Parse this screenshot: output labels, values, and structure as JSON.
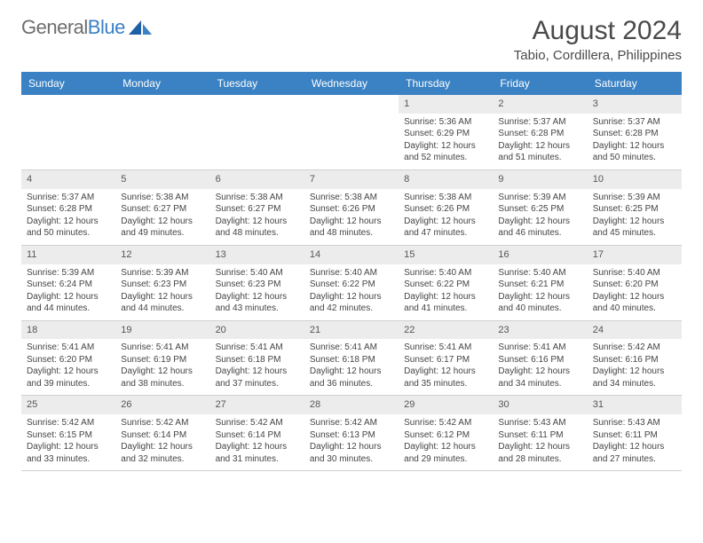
{
  "logo": {
    "word1": "General",
    "word2": "Blue"
  },
  "title": "August 2024",
  "location": "Tabio, Cordillera, Philippines",
  "colors": {
    "header_bg": "#3b82c4",
    "header_text": "#ffffff",
    "daynum_bg": "#ececec",
    "text": "#444444",
    "title_text": "#4a4a4a",
    "logo_gray": "#6e6e6e",
    "logo_blue": "#3b7fc4"
  },
  "day_names": [
    "Sunday",
    "Monday",
    "Tuesday",
    "Wednesday",
    "Thursday",
    "Friday",
    "Saturday"
  ],
  "weeks": [
    [
      {
        "n": "",
        "sr": "",
        "ss": "",
        "dl": ""
      },
      {
        "n": "",
        "sr": "",
        "ss": "",
        "dl": ""
      },
      {
        "n": "",
        "sr": "",
        "ss": "",
        "dl": ""
      },
      {
        "n": "",
        "sr": "",
        "ss": "",
        "dl": ""
      },
      {
        "n": "1",
        "sr": "Sunrise: 5:36 AM",
        "ss": "Sunset: 6:29 PM",
        "dl": "Daylight: 12 hours and 52 minutes."
      },
      {
        "n": "2",
        "sr": "Sunrise: 5:37 AM",
        "ss": "Sunset: 6:28 PM",
        "dl": "Daylight: 12 hours and 51 minutes."
      },
      {
        "n": "3",
        "sr": "Sunrise: 5:37 AM",
        "ss": "Sunset: 6:28 PM",
        "dl": "Daylight: 12 hours and 50 minutes."
      }
    ],
    [
      {
        "n": "4",
        "sr": "Sunrise: 5:37 AM",
        "ss": "Sunset: 6:28 PM",
        "dl": "Daylight: 12 hours and 50 minutes."
      },
      {
        "n": "5",
        "sr": "Sunrise: 5:38 AM",
        "ss": "Sunset: 6:27 PM",
        "dl": "Daylight: 12 hours and 49 minutes."
      },
      {
        "n": "6",
        "sr": "Sunrise: 5:38 AM",
        "ss": "Sunset: 6:27 PM",
        "dl": "Daylight: 12 hours and 48 minutes."
      },
      {
        "n": "7",
        "sr": "Sunrise: 5:38 AM",
        "ss": "Sunset: 6:26 PM",
        "dl": "Daylight: 12 hours and 48 minutes."
      },
      {
        "n": "8",
        "sr": "Sunrise: 5:38 AM",
        "ss": "Sunset: 6:26 PM",
        "dl": "Daylight: 12 hours and 47 minutes."
      },
      {
        "n": "9",
        "sr": "Sunrise: 5:39 AM",
        "ss": "Sunset: 6:25 PM",
        "dl": "Daylight: 12 hours and 46 minutes."
      },
      {
        "n": "10",
        "sr": "Sunrise: 5:39 AM",
        "ss": "Sunset: 6:25 PM",
        "dl": "Daylight: 12 hours and 45 minutes."
      }
    ],
    [
      {
        "n": "11",
        "sr": "Sunrise: 5:39 AM",
        "ss": "Sunset: 6:24 PM",
        "dl": "Daylight: 12 hours and 44 minutes."
      },
      {
        "n": "12",
        "sr": "Sunrise: 5:39 AM",
        "ss": "Sunset: 6:23 PM",
        "dl": "Daylight: 12 hours and 44 minutes."
      },
      {
        "n": "13",
        "sr": "Sunrise: 5:40 AM",
        "ss": "Sunset: 6:23 PM",
        "dl": "Daylight: 12 hours and 43 minutes."
      },
      {
        "n": "14",
        "sr": "Sunrise: 5:40 AM",
        "ss": "Sunset: 6:22 PM",
        "dl": "Daylight: 12 hours and 42 minutes."
      },
      {
        "n": "15",
        "sr": "Sunrise: 5:40 AM",
        "ss": "Sunset: 6:22 PM",
        "dl": "Daylight: 12 hours and 41 minutes."
      },
      {
        "n": "16",
        "sr": "Sunrise: 5:40 AM",
        "ss": "Sunset: 6:21 PM",
        "dl": "Daylight: 12 hours and 40 minutes."
      },
      {
        "n": "17",
        "sr": "Sunrise: 5:40 AM",
        "ss": "Sunset: 6:20 PM",
        "dl": "Daylight: 12 hours and 40 minutes."
      }
    ],
    [
      {
        "n": "18",
        "sr": "Sunrise: 5:41 AM",
        "ss": "Sunset: 6:20 PM",
        "dl": "Daylight: 12 hours and 39 minutes."
      },
      {
        "n": "19",
        "sr": "Sunrise: 5:41 AM",
        "ss": "Sunset: 6:19 PM",
        "dl": "Daylight: 12 hours and 38 minutes."
      },
      {
        "n": "20",
        "sr": "Sunrise: 5:41 AM",
        "ss": "Sunset: 6:18 PM",
        "dl": "Daylight: 12 hours and 37 minutes."
      },
      {
        "n": "21",
        "sr": "Sunrise: 5:41 AM",
        "ss": "Sunset: 6:18 PM",
        "dl": "Daylight: 12 hours and 36 minutes."
      },
      {
        "n": "22",
        "sr": "Sunrise: 5:41 AM",
        "ss": "Sunset: 6:17 PM",
        "dl": "Daylight: 12 hours and 35 minutes."
      },
      {
        "n": "23",
        "sr": "Sunrise: 5:41 AM",
        "ss": "Sunset: 6:16 PM",
        "dl": "Daylight: 12 hours and 34 minutes."
      },
      {
        "n": "24",
        "sr": "Sunrise: 5:42 AM",
        "ss": "Sunset: 6:16 PM",
        "dl": "Daylight: 12 hours and 34 minutes."
      }
    ],
    [
      {
        "n": "25",
        "sr": "Sunrise: 5:42 AM",
        "ss": "Sunset: 6:15 PM",
        "dl": "Daylight: 12 hours and 33 minutes."
      },
      {
        "n": "26",
        "sr": "Sunrise: 5:42 AM",
        "ss": "Sunset: 6:14 PM",
        "dl": "Daylight: 12 hours and 32 minutes."
      },
      {
        "n": "27",
        "sr": "Sunrise: 5:42 AM",
        "ss": "Sunset: 6:14 PM",
        "dl": "Daylight: 12 hours and 31 minutes."
      },
      {
        "n": "28",
        "sr": "Sunrise: 5:42 AM",
        "ss": "Sunset: 6:13 PM",
        "dl": "Daylight: 12 hours and 30 minutes."
      },
      {
        "n": "29",
        "sr": "Sunrise: 5:42 AM",
        "ss": "Sunset: 6:12 PM",
        "dl": "Daylight: 12 hours and 29 minutes."
      },
      {
        "n": "30",
        "sr": "Sunrise: 5:43 AM",
        "ss": "Sunset: 6:11 PM",
        "dl": "Daylight: 12 hours and 28 minutes."
      },
      {
        "n": "31",
        "sr": "Sunrise: 5:43 AM",
        "ss": "Sunset: 6:11 PM",
        "dl": "Daylight: 12 hours and 27 minutes."
      }
    ]
  ]
}
